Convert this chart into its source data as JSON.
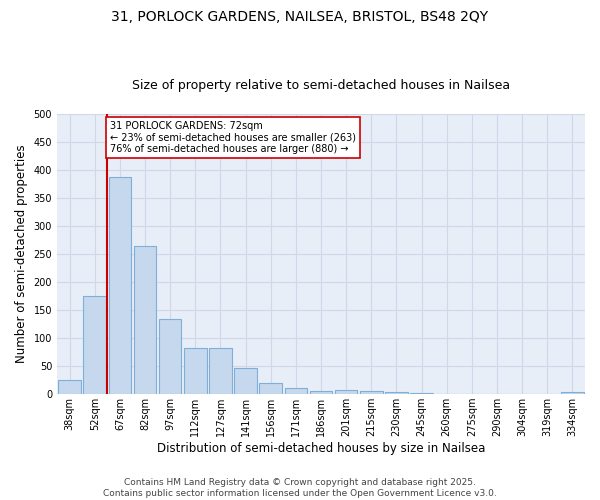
{
  "title1": "31, PORLOCK GARDENS, NAILSEA, BRISTOL, BS48 2QY",
  "title2": "Size of property relative to semi-detached houses in Nailsea",
  "xlabel": "Distribution of semi-detached houses by size in Nailsea",
  "ylabel": "Number of semi-detached properties",
  "categories": [
    "38sqm",
    "52sqm",
    "67sqm",
    "82sqm",
    "97sqm",
    "112sqm",
    "127sqm",
    "141sqm",
    "156sqm",
    "171sqm",
    "186sqm",
    "201sqm",
    "215sqm",
    "230sqm",
    "245sqm",
    "260sqm",
    "275sqm",
    "290sqm",
    "304sqm",
    "319sqm",
    "334sqm"
  ],
  "values": [
    25,
    175,
    387,
    265,
    135,
    82,
    82,
    47,
    20,
    11,
    5,
    7,
    6,
    3,
    2,
    1,
    1,
    0,
    0,
    0,
    4
  ],
  "bar_color": "#c5d8ed",
  "bar_edge_color": "#7fafd6",
  "vline_x": 2.0,
  "vline_label": "31 PORLOCK GARDENS: 72sqm",
  "pct_smaller": "23% of semi-detached houses are smaller (263)",
  "pct_larger": "76% of semi-detached houses are larger (880)",
  "annotation_box_color": "#ffffff",
  "annotation_box_edge": "#cc0000",
  "vline_color": "#cc0000",
  "grid_color": "#d0d8e8",
  "background_color": "#e8eef8",
  "footer1": "Contains HM Land Registry data © Crown copyright and database right 2025.",
  "footer2": "Contains public sector information licensed under the Open Government Licence v3.0.",
  "ylim": [
    0,
    500
  ],
  "yticks": [
    0,
    50,
    100,
    150,
    200,
    250,
    300,
    350,
    400,
    450,
    500
  ],
  "title_fontsize": 10,
  "subtitle_fontsize": 9,
  "axis_label_fontsize": 8.5,
  "tick_fontsize": 7,
  "footer_fontsize": 6.5,
  "annot_fontsize": 7
}
